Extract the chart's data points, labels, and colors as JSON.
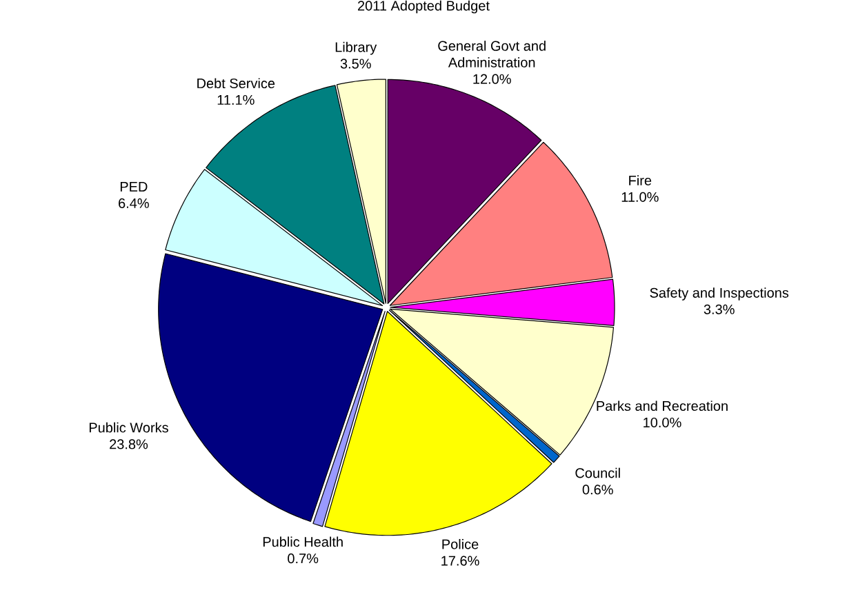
{
  "chart_data": {
    "type": "pie",
    "title": "2011 Adopted Budget",
    "categories": [
      "General Govt and Administration",
      "Fire",
      "Safety and Inspections",
      "Parks and Recreation",
      "Council",
      "Police",
      "Public Health",
      "Public Works",
      "PED",
      "Debt Service",
      "Library"
    ],
    "values": [
      12.0,
      11.0,
      3.3,
      10.0,
      0.6,
      17.6,
      0.7,
      23.8,
      6.4,
      11.1,
      3.5
    ],
    "value_labels": [
      "12.0%",
      "11.0%",
      "3.3%",
      "10.0%",
      "0.6%",
      "17.6%",
      "0.7%",
      "23.8%",
      "6.4%",
      "11.1%",
      "3.5%"
    ],
    "colors": [
      "#660066",
      "#ff8080",
      "#ff00ff",
      "#ffffcc",
      "#0066cc",
      "#ffff00",
      "#9999ff",
      "#000080",
      "#ccffff",
      "#008080",
      "#ffffcc"
    ]
  }
}
